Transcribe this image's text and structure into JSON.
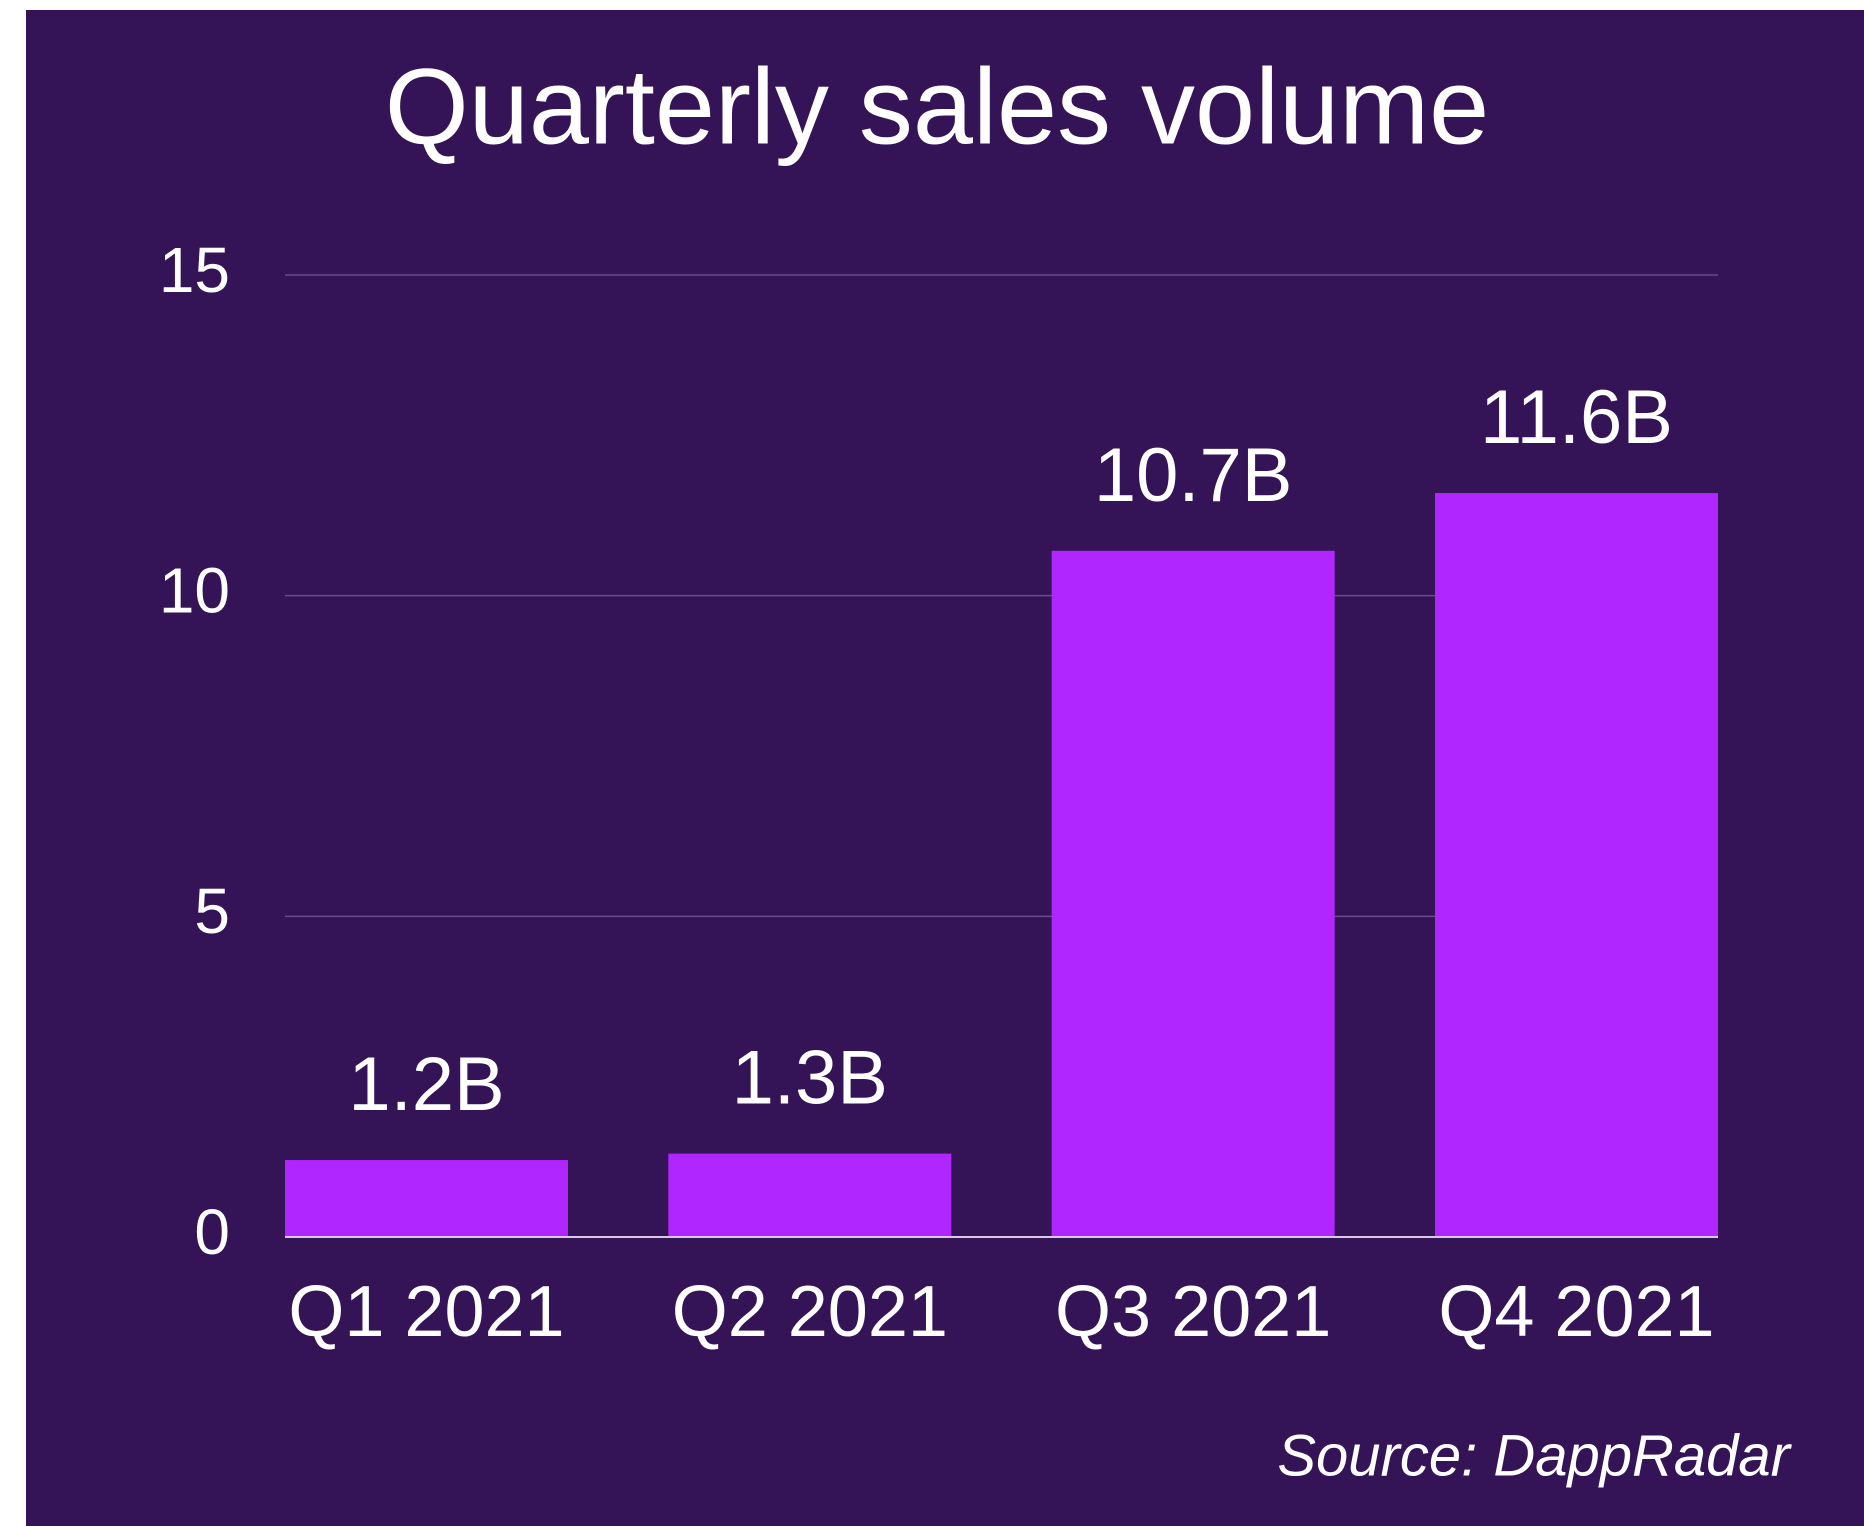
{
  "chart_data": {
    "type": "bar",
    "title": "Quarterly sales volume",
    "categories": [
      "Q1 2021",
      "Q2 2021",
      "Q3 2021",
      "Q4 2021"
    ],
    "values": [
      1.2,
      1.3,
      10.7,
      11.6
    ],
    "value_labels": [
      "1.2B",
      "1.3B",
      "10.7B",
      "11.6B"
    ],
    "color": "#b026ff",
    "ylim": [
      0,
      15
    ],
    "yticks": [
      0,
      5,
      10,
      15
    ],
    "grid": true,
    "source": "Source: DappRadar"
  }
}
